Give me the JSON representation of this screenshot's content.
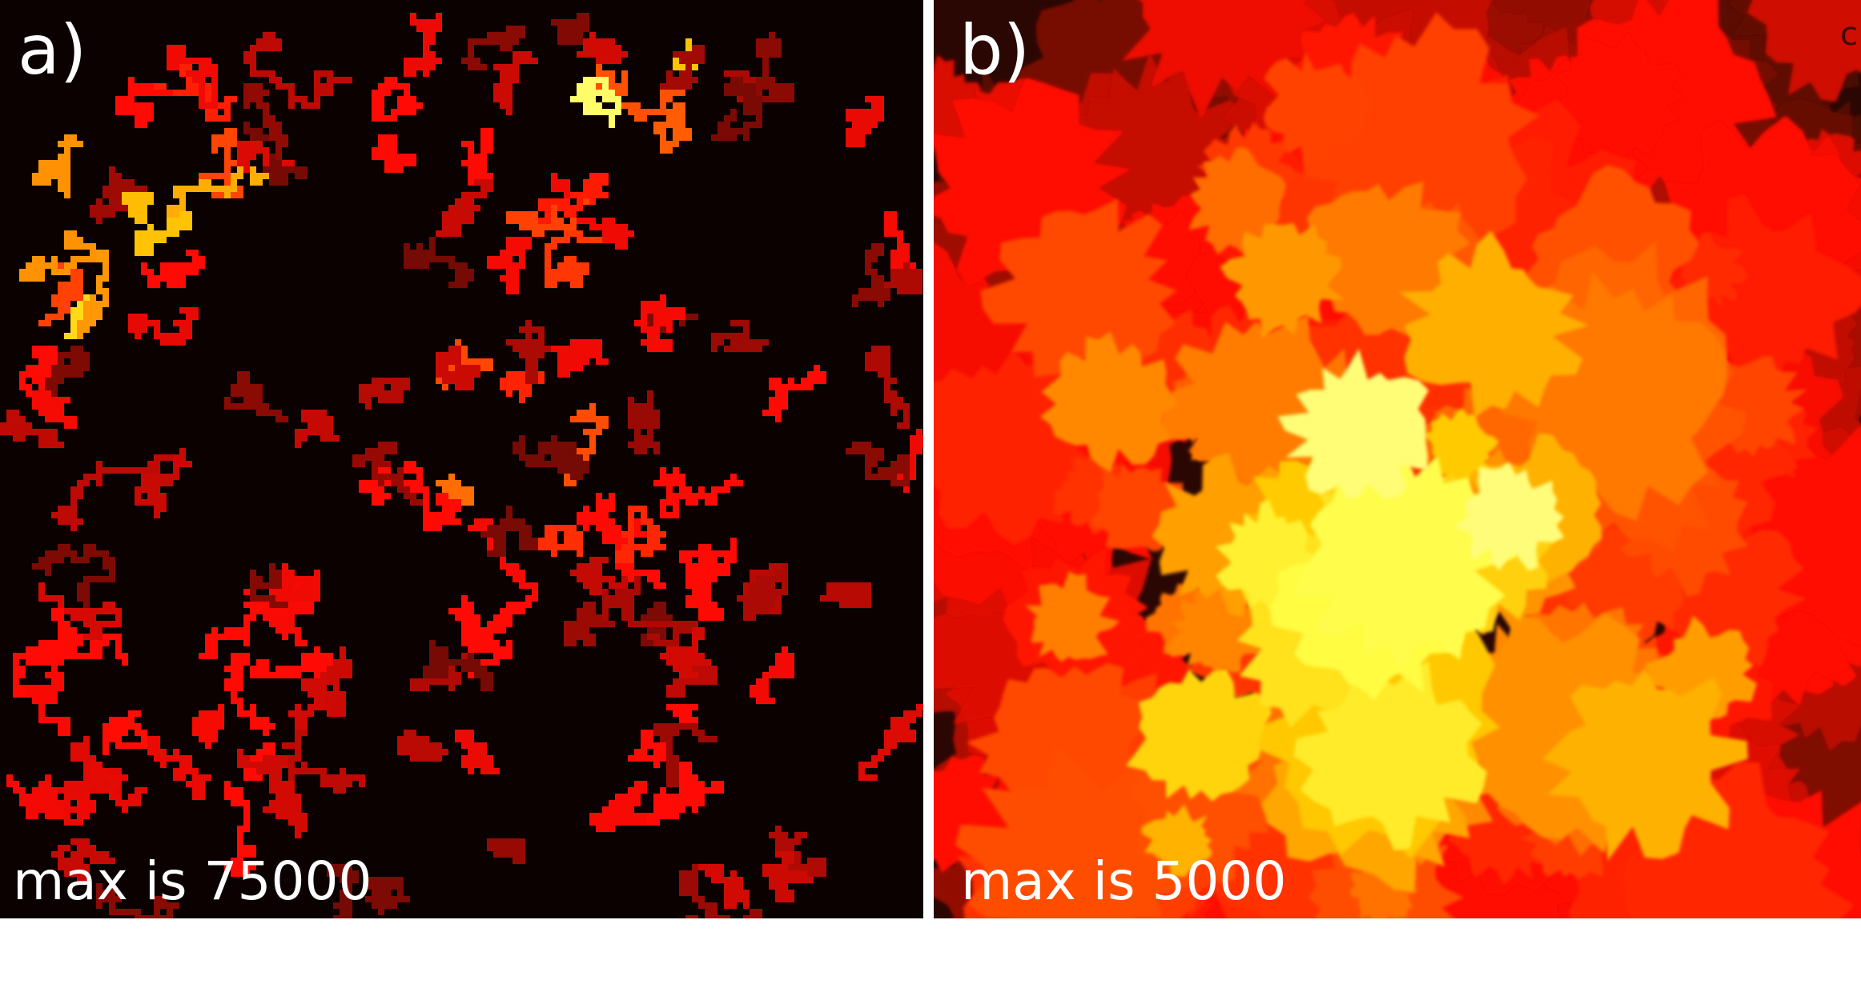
{
  "panels": [
    {
      "label": "a)",
      "caption": "max is 75000"
    },
    {
      "label": "b)",
      "caption": "max is 5000",
      "edge_label": "c"
    }
  ]
}
